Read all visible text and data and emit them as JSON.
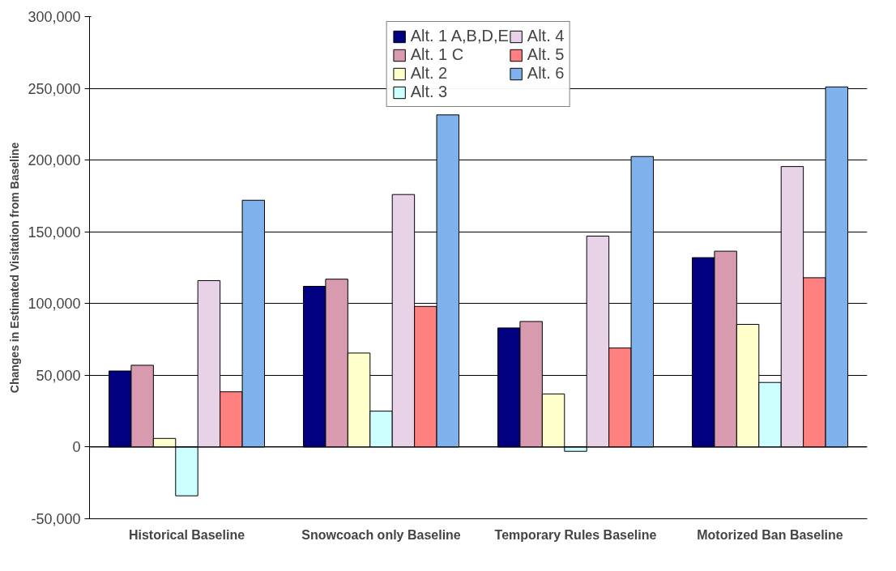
{
  "chart_data": {
    "type": "bar",
    "ylabel": "Changes in Estimated Visitation from Baseline",
    "categories": [
      "Historical Baseline",
      "Snowcoach only Baseline",
      "Temporary Rules Baseline",
      "Motorized Ban Baseline"
    ],
    "series": [
      {
        "name": "Alt. 1 A,B,D,E",
        "color": "#000080",
        "values": [
          53000,
          112000,
          83000,
          132000
        ]
      },
      {
        "name": "Alt. 1 C",
        "color": "#d89aae",
        "values": [
          57000,
          117000,
          87500,
          136500
        ]
      },
      {
        "name": "Alt. 2",
        "color": "#ffffcc",
        "values": [
          6000,
          65500,
          37000,
          85500
        ]
      },
      {
        "name": "Alt. 3",
        "color": "#ccffff",
        "values": [
          -34000,
          25000,
          -3000,
          45000
        ]
      },
      {
        "name": "Alt. 4",
        "color": "#e8d2e8",
        "values": [
          116000,
          176000,
          147000,
          195500
        ]
      },
      {
        "name": "Alt. 5",
        "color": "#ff8080",
        "values": [
          38500,
          98000,
          69000,
          118000
        ]
      },
      {
        "name": "Alt. 6",
        "color": "#7fb2ec",
        "values": [
          172000,
          231500,
          202500,
          251000
        ]
      }
    ],
    "ylim": [
      -50000,
      300000
    ],
    "yticks": [
      {
        "value": -50000,
        "label": "-50,000"
      },
      0,
      {
        "value": 50000,
        "label": "50,000"
      },
      {
        "value": 100000,
        "label": "100,000"
      },
      {
        "value": 150000,
        "label": "150,000"
      },
      {
        "value": 200000,
        "label": "200,000"
      },
      {
        "value": 250000,
        "label": "250,000"
      },
      {
        "value": 300000,
        "label": "300,000"
      }
    ],
    "grid": "y",
    "legend": "top"
  }
}
